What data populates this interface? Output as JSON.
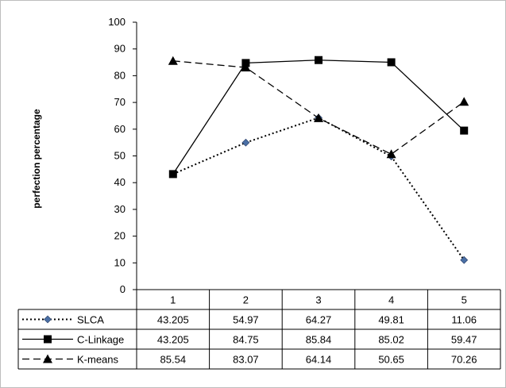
{
  "chart_data": {
    "type": "line",
    "categories": [
      "1",
      "2",
      "3",
      "4",
      "5"
    ],
    "ylabel": "perfection percentage",
    "xlabel": "",
    "ylim": [
      0,
      100
    ],
    "yticks": [
      0,
      10,
      20,
      30,
      40,
      50,
      60,
      70,
      80,
      90,
      100
    ],
    "grid": false,
    "legend": "data-table-left",
    "series": [
      {
        "name": "SLCA",
        "values": [
          43.205,
          54.97,
          64.27,
          49.81,
          11.06
        ],
        "display": [
          "43.205",
          "54.97",
          "64.27",
          "49.81",
          "11.06"
        ],
        "line_style": "dotted",
        "marker": "diamond",
        "marker_color": "#4a6fa5",
        "color": "#000000"
      },
      {
        "name": "C-Linkage",
        "values": [
          43.205,
          84.75,
          85.84,
          85.02,
          59.47
        ],
        "display": [
          "43.205",
          "84.75",
          "85.84",
          "85.02",
          "59.47"
        ],
        "line_style": "solid",
        "marker": "square",
        "marker_color": "#000000",
        "color": "#000000"
      },
      {
        "name": "K-means",
        "values": [
          85.54,
          83.07,
          64.14,
          50.65,
          70.26
        ],
        "display": [
          "85.54",
          "83.07",
          "64.14",
          "50.65",
          "70.26"
        ],
        "line_style": "dashed",
        "marker": "triangle",
        "marker_color": "#000000",
        "color": "#000000"
      }
    ]
  }
}
